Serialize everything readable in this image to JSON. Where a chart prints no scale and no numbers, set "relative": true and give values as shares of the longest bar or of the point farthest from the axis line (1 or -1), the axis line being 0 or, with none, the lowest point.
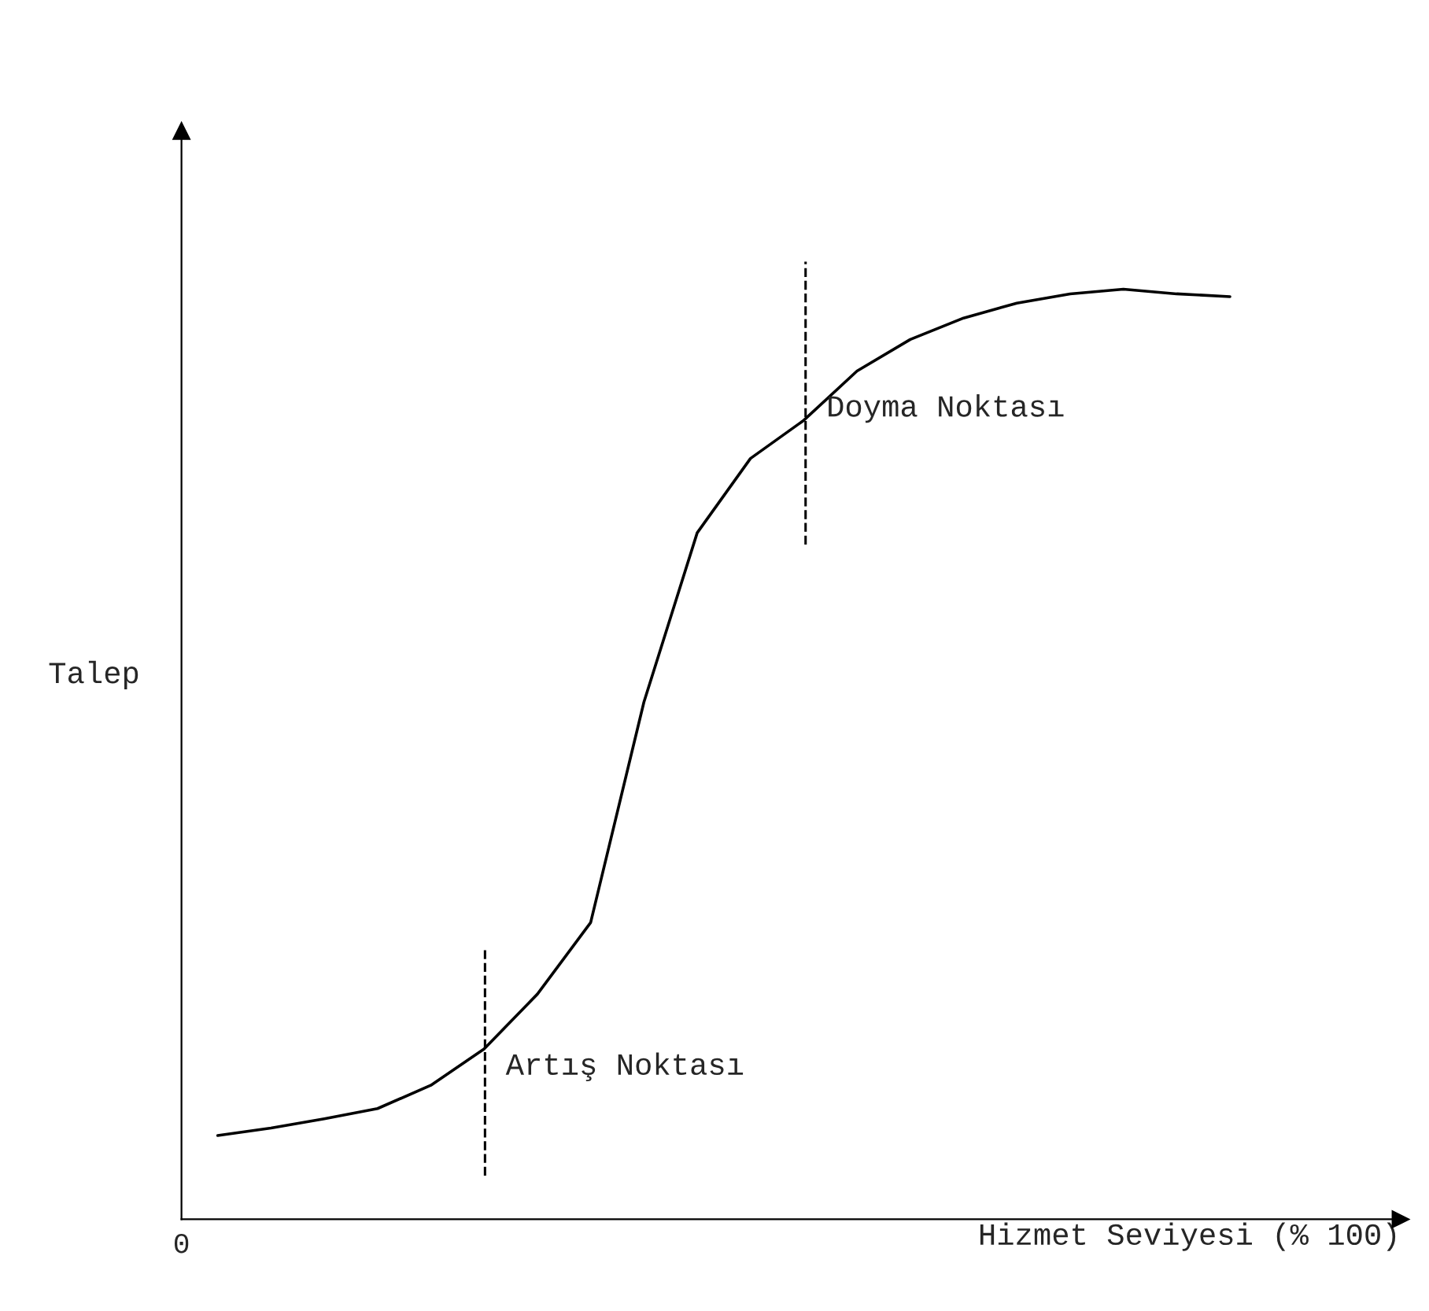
{
  "chart_data": {
    "type": "line",
    "relative": true,
    "xlabel": "Hizmet Seviyesi (% 100)",
    "ylabel": "Talep",
    "categories": [
      null,
      null,
      null,
      null,
      null,
      null,
      null,
      null,
      null,
      null,
      null,
      null,
      null,
      null,
      null,
      null,
      null,
      null,
      null,
      null
    ],
    "series": [
      {
        "color": "#000000",
        "values": [
          0.09,
          0.098,
          0.108,
          0.119,
          0.144,
          0.183,
          0.242,
          0.319,
          0.556,
          0.738,
          0.818,
          0.859,
          0.912,
          0.946,
          0.969,
          0.985,
          0.995,
          1.0,
          0.995,
          0.992
        ]
      }
    ],
    "annotations": [
      "0",
      "Artış Noktası",
      "Doyma Noktası"
    ],
    "line_style": "solid"
  }
}
